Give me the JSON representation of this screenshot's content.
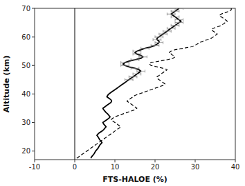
{
  "chart_data": {
    "type": "line",
    "xlabel": "FTS-HALOE (%)",
    "ylabel": "Altitude (km)",
    "xlim": [
      -10,
      40
    ],
    "ylim": [
      17,
      70
    ],
    "xticks": [
      -10,
      0,
      10,
      20,
      30,
      40
    ],
    "yticks": [
      20,
      30,
      40,
      50,
      60,
      70
    ],
    "grid": false,
    "vline": 0,
    "series": [
      {
        "color": "black",
        "line_style": "dashed",
        "x": [
          0.5,
          1.0,
          1.5,
          2.0,
          2.5,
          3.0,
          3.5,
          4.0,
          4.5,
          5.0,
          5.5,
          6.0,
          6.5,
          7.0,
          7.5,
          8.0,
          8.5,
          9.0,
          9.5,
          10.0,
          10.5,
          11.0,
          11.5,
          11.0,
          10.5,
          10.0,
          9.5,
          9.0,
          9.5,
          10.0,
          11.0,
          12.0,
          13.0,
          14.0,
          15.0,
          15.5,
          15.0,
          14.5,
          14.0,
          13.5,
          13.0,
          13.5,
          14.0,
          14.5,
          15.0,
          16.0,
          17.0,
          18.0,
          19.0,
          20.0,
          21.0,
          22.0,
          22.5,
          22.0,
          21.5,
          21.0,
          20.5,
          20.5,
          21.0,
          21.5,
          22.0,
          22.5,
          23.0,
          22.0,
          20.5,
          19.0,
          18.5,
          19.0,
          21.0,
          23.0,
          24.5,
          25.0,
          24.5,
          24.0,
          23.5,
          24.0,
          25.0,
          27.0,
          29.0,
          30.0,
          30.5,
          31.0,
          32.0,
          33.0,
          34.0,
          34.5,
          35.0,
          35.5,
          35.0,
          34.5,
          34.0,
          34.5,
          35.5,
          36.5,
          37.0,
          37.5,
          38.0,
          37.5,
          37.0,
          36.5,
          36.0,
          36.5,
          37.5,
          38.5,
          39.0,
          39.0
        ],
        "values": [
          17.5,
          18,
          18.5,
          19,
          19.5,
          20,
          20.5,
          21,
          21.5,
          22,
          22.5,
          23,
          23.5,
          24,
          24.5,
          25,
          25.5,
          26,
          26.5,
          27,
          27.5,
          28,
          28.5,
          29,
          29.5,
          30,
          30.5,
          31,
          31.5,
          32,
          32.5,
          33,
          33.5,
          34,
          34.5,
          35,
          35.5,
          36,
          36.5,
          37,
          37.5,
          38,
          38.5,
          39,
          39.5,
          40,
          40.5,
          41,
          41.5,
          42,
          42.5,
          43,
          43.5,
          44,
          44.5,
          45,
          45.5,
          46,
          46.5,
          47,
          47.5,
          48,
          48.5,
          49,
          49.5,
          50,
          50.5,
          51,
          51.5,
          52,
          52.5,
          53,
          53.5,
          54,
          54.5,
          55,
          55.5,
          56,
          56.5,
          57,
          57.5,
          58,
          58.5,
          59,
          59.5,
          60,
          60.5,
          61,
          61.5,
          62,
          62.5,
          63,
          63.5,
          64,
          64.5,
          65,
          65.5,
          66,
          66.5,
          67,
          67.5,
          68,
          68.5,
          69,
          69.5,
          70
        ]
      },
      {
        "color": "black",
        "line_style": "solid",
        "x": [
          4.0,
          4.2,
          4.5,
          4.8,
          5.0,
          5.2,
          5.5,
          5.8,
          6.0,
          6.2,
          6.5,
          6.8,
          6.5,
          6.2,
          6.0,
          5.8,
          5.5,
          5.8,
          6.2,
          6.8,
          7.2,
          7.5,
          7.8,
          7.5,
          7.2,
          7.0,
          7.5,
          8.0,
          8.5,
          8.8,
          8.5,
          8.2,
          7.8,
          7.5,
          7.2,
          7.0,
          7.5,
          8.0,
          8.5,
          9.0,
          9.2,
          9.0,
          8.5,
          8.0,
          8.2,
          8.5,
          9.0,
          9.5,
          10.0,
          10.5,
          11.0,
          11.5,
          12.0,
          12.5,
          13.0,
          13.5,
          14.0,
          14.5,
          15.0,
          15.5,
          16.0,
          16.5,
          16.0,
          15.0,
          13.5,
          12.5,
          12.0,
          12.5,
          13.5,
          15.0,
          16.5,
          17.0,
          16.5,
          15.5,
          15.0,
          15.5,
          16.5,
          17.5,
          19.0,
          20.0,
          20.5,
          21.0,
          21.0,
          20.5,
          20.5,
          21.0,
          21.5,
          22.0,
          22.5,
          23.0,
          23.5,
          24.0,
          24.5,
          25.0,
          25.5,
          26.0,
          26.5,
          26.0,
          25.5,
          25.0,
          24.5,
          24.0,
          24.5,
          25.0,
          25.5,
          26.0
        ],
        "values": [
          17.5,
          18,
          18.5,
          19,
          19.5,
          20,
          20.5,
          21,
          21.5,
          22,
          22.5,
          23,
          23.5,
          24,
          24.5,
          25,
          25.5,
          26,
          26.5,
          27,
          27.5,
          28,
          28.5,
          29,
          29.5,
          30,
          30.5,
          31,
          31.5,
          32,
          32.5,
          33,
          33.5,
          34,
          34.5,
          35,
          35.5,
          36,
          36.5,
          37,
          37.5,
          38,
          38.5,
          39,
          39.5,
          40,
          40.5,
          41,
          41.5,
          42,
          42.5,
          43,
          43.5,
          44,
          44.5,
          45,
          45.5,
          46,
          46.5,
          47,
          47.5,
          48,
          48.5,
          49,
          49.5,
          50,
          50.5,
          51,
          51.5,
          52,
          52.5,
          53,
          53.5,
          54,
          54.5,
          55,
          55.5,
          56,
          56.5,
          57,
          57.5,
          58,
          58.5,
          59,
          59.5,
          60,
          60.5,
          61,
          61.5,
          62,
          62.5,
          63,
          63.5,
          64,
          64.5,
          65,
          65.5,
          66,
          66.5,
          67,
          67.5,
          68,
          68.5,
          69,
          69.5,
          70
        ],
        "x_errors": [
          null,
          null,
          null,
          null,
          null,
          null,
          null,
          null,
          null,
          null,
          null,
          null,
          null,
          null,
          null,
          null,
          null,
          null,
          null,
          null,
          null,
          null,
          null,
          null,
          null,
          null,
          null,
          null,
          null,
          null,
          null,
          null,
          null,
          null,
          null,
          null,
          null,
          null,
          null,
          null,
          null,
          null,
          null,
          null,
          null,
          null,
          null,
          null,
          null,
          null,
          null,
          null,
          null,
          null,
          null,
          1.0,
          null,
          1.0,
          null,
          1.0,
          null,
          1.0,
          null,
          1.0,
          null,
          1.0,
          null,
          1.0,
          null,
          1.0,
          null,
          1.0,
          null,
          1.0,
          null,
          1.0,
          null,
          1.0,
          null,
          1.0,
          null,
          1.0,
          null,
          1.0,
          null,
          1.0,
          null,
          1.0,
          null,
          1.0,
          null,
          1.0,
          null,
          1.0,
          null,
          1.0,
          null,
          1.0,
          null,
          1.0,
          null,
          1.0,
          null,
          1.0,
          null,
          1.0
        ]
      }
    ]
  }
}
